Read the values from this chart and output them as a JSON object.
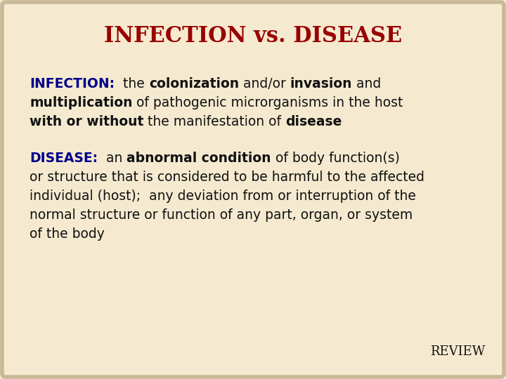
{
  "title": "INFECTION vs. DISEASE",
  "title_color": "#990000",
  "title_fontsize": 22,
  "background_color": "#f5ead0",
  "border_color": "#c8b896",
  "blue": "#00008B",
  "body_color": "#111111",
  "body_fontsize": 13.5,
  "review_text": "REVIEW",
  "review_color": "#111111",
  "review_fontsize": 13,
  "infection_line1": [
    [
      "INFECTION:",
      "#00008B",
      "bold"
    ],
    [
      "  the ",
      "#111111",
      "normal"
    ],
    [
      "colonization",
      "#111111",
      "bold"
    ],
    [
      " and/or ",
      "#111111",
      "normal"
    ],
    [
      "invasion",
      "#111111",
      "bold"
    ],
    [
      " and",
      "#111111",
      "normal"
    ]
  ],
  "infection_line2": [
    [
      "multiplication",
      "#111111",
      "bold"
    ],
    [
      " of pathogenic microrganisms in the host",
      "#111111",
      "normal"
    ]
  ],
  "infection_line3": [
    [
      "with or without",
      "#111111",
      "bold"
    ],
    [
      " the manifestation of ",
      "#111111",
      "normal"
    ],
    [
      "disease",
      "#111111",
      "bold"
    ]
  ],
  "disease_line1": [
    [
      "DISEASE:",
      "#00008B",
      "bold"
    ],
    [
      "  an ",
      "#111111",
      "normal"
    ],
    [
      "abnormal condition",
      "#111111",
      "bold"
    ],
    [
      " of body function(s)",
      "#111111",
      "normal"
    ]
  ],
  "disease_lines": [
    "or structure that is considered to be harmful to the affected",
    "individual (host);  any deviation from or interruption of the",
    "normal structure or function of any part, organ, or system",
    "of the body"
  ]
}
